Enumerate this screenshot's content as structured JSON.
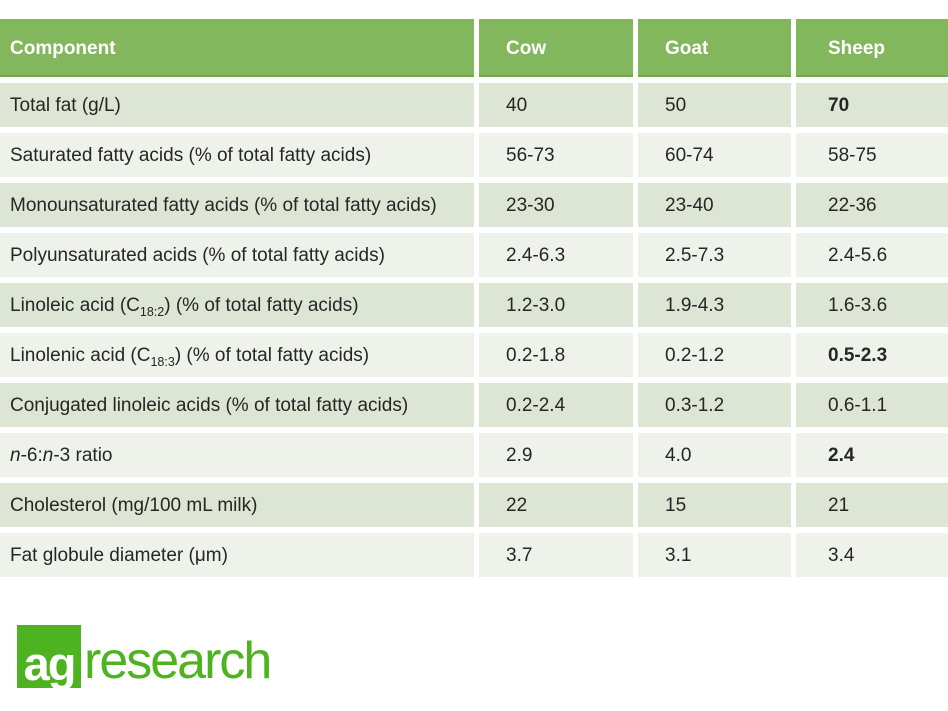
{
  "header": {
    "component": "Component",
    "cow": "Cow",
    "goat": "Goat",
    "sheep": "Sheep"
  },
  "rows": [
    {
      "label": [
        [
          "Total fat (g/L)"
        ]
      ],
      "cow": "40",
      "goat": "50",
      "sheep": "70",
      "bold": [
        "sheep"
      ]
    },
    {
      "label": [
        [
          "Saturated fatty acids (% of total fatty acids)"
        ]
      ],
      "cow": "56-73",
      "goat": "60-74",
      "sheep": "58-75"
    },
    {
      "label": [
        [
          "Monounsaturated fatty acids (% of total fatty acids)"
        ]
      ],
      "cow": "23-30",
      "goat": "23-40",
      "sheep": "22-36"
    },
    {
      "label": [
        [
          "Polyunsaturated acids (% of total fatty acids)"
        ]
      ],
      "cow": "2.4-6.3",
      "goat": "2.5-7.3",
      "sheep": "2.4-5.6"
    },
    {
      "label": [
        [
          "Linoleic acid (C"
        ],
        [
          "18:2",
          "sub"
        ],
        [
          ") (% of total fatty acids)"
        ]
      ],
      "cow": "1.2-3.0",
      "goat": "1.9-4.3",
      "sheep": "1.6-3.6"
    },
    {
      "label": [
        [
          "Linolenic acid (C"
        ],
        [
          "18:3",
          "sub"
        ],
        [
          ") (% of total fatty acids)"
        ]
      ],
      "cow": "0.2-1.8",
      "goat": "0.2-1.2",
      "sheep": "0.5-2.3",
      "bold": [
        "sheep"
      ]
    },
    {
      "label": [
        [
          "Conjugated linoleic acids (% of total fatty acids)"
        ]
      ],
      "cow": "0.2-2.4",
      "goat": "0.3-1.2",
      "sheep": "0.6-1.1"
    },
    {
      "label": [
        [
          "n",
          "i"
        ],
        [
          "-6:"
        ],
        [
          "n",
          "i"
        ],
        [
          "-3 ratio"
        ]
      ],
      "cow": "2.9",
      "goat": "4.0",
      "sheep": "2.4",
      "bold": [
        "sheep"
      ]
    },
    {
      "label": [
        [
          "Cholesterol (mg/100 mL milk)"
        ]
      ],
      "cow": "22",
      "goat": "15",
      "sheep": "21"
    },
    {
      "label": [
        [
          "Fat globule diameter (μm)"
        ]
      ],
      "cow": "3.7",
      "goat": "3.1",
      "sheep": "3.4"
    }
  ],
  "logo": {
    "ag": "ag",
    "research": "research"
  },
  "colors": {
    "header_green": "#83b75d",
    "row_band_dark": "#dde5d4",
    "row_band_light": "#eff2ea",
    "logo_green": "#4eb321",
    "text": "#262626",
    "header_text": "#ffffff"
  }
}
